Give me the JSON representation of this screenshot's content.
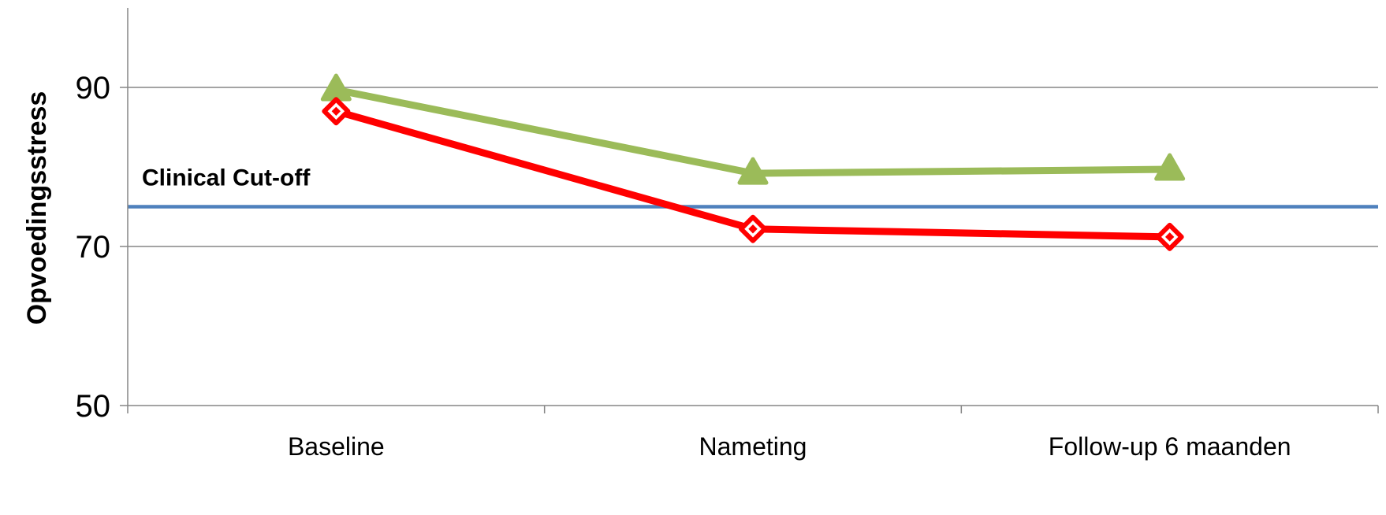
{
  "chart_data": {
    "type": "line",
    "title": "",
    "xlabel": "",
    "ylabel": "Opvoedingsstress",
    "categories": [
      "Baseline",
      "Nameting",
      "Follow-up 6 maanden"
    ],
    "ylim": [
      50,
      100
    ],
    "yticks": [
      50,
      70,
      90
    ],
    "grid": "horizontal",
    "legend": "none",
    "series": [
      {
        "values": [
          89.7,
          79.2,
          79.7
        ],
        "color": "#9BBB59",
        "marker": "triangle"
      },
      {
        "values": [
          87.0,
          72.2,
          71.2
        ],
        "color": "#FF0000",
        "marker": "diamond"
      }
    ],
    "reference_line": {
      "label": "Clinical Cut-off",
      "value": 75,
      "color": "#4F81BD"
    }
  }
}
